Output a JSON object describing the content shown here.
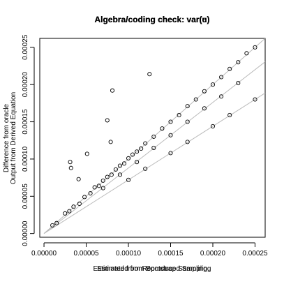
{
  "chart_data": {
    "type": "scatter",
    "titles": [
      "Algebra/coding check: var(u)",
      "Algebra/coding check: var(e)"
    ],
    "xlabels": [
      "Estimated from Bootstrap Sampling",
      "Estimated from Reproduced Sampling"
    ],
    "ylabels": [
      "Difference from oracle",
      "Output from Derived Equation"
    ],
    "xlim": [
      -5e-06,
      0.000262
    ],
    "ylim": [
      -5e-06,
      0.000262
    ],
    "xticks": [
      {
        "value": 0,
        "label": "0.00000"
      },
      {
        "value": 5e-05,
        "label": "0.00005"
      },
      {
        "value": 0.0001,
        "label": "0.00010"
      },
      {
        "value": 0.00015,
        "label": "0.00015"
      },
      {
        "value": 0.0002,
        "label": "0.00020"
      },
      {
        "value": 0.00025,
        "label": "0.00025"
      }
    ],
    "yticks": [
      {
        "value": 0,
        "label": "0.00000"
      },
      {
        "value": 5e-05,
        "label": "0.00005"
      },
      {
        "value": 0.0001,
        "label": "0.00010"
      },
      {
        "value": 0.00015,
        "label": "0.00015"
      },
      {
        "value": 0.0002,
        "label": "0.00020"
      },
      {
        "value": 0.00025,
        "label": "0.00025"
      }
    ],
    "reference_slopes": [
      1,
      0.88,
      0.72
    ],
    "color": "#000000",
    "x": [
      1e-05,
      1.5e-05,
      2.5e-05,
      3e-05,
      3.5e-05,
      4.2e-05,
      4.8e-05,
      5.5e-05,
      6e-05,
      6.5e-05,
      7e-05,
      7.5e-05,
      8e-05,
      8.5e-05,
      9e-05,
      9.5e-05,
      0.0001,
      0.000105,
      0.00011,
      0.000115,
      0.00012,
      0.00013,
      0.00014,
      0.00015,
      0.00016,
      0.00017,
      0.00018,
      0.00019,
      0.0002,
      0.00021,
      0.00022,
      0.00023,
      0.00024,
      0.00025,
      7e-05,
      9e-05,
      0.00011,
      0.00013,
      0.00015,
      0.00017,
      0.00019,
      0.00021,
      0.00023,
      0.0001,
      0.00012,
      0.00015,
      0.00017,
      0.0002,
      0.00022,
      0.00025,
      0.000125,
      8.1e-05,
      7.5e-05,
      7.9e-05,
      5.1e-05,
      3.1e-05,
      3.2e-05,
      4.1e-05
    ],
    "y": [
      1.1e-05,
      1.4e-05,
      2.7e-05,
      3e-05,
      3.6e-05,
      4e-05,
      4.9e-05,
      5.4e-05,
      6.2e-05,
      6.4e-05,
      7.1e-05,
      7.6e-05,
      7.9e-05,
      8.6e-05,
      9.1e-05,
      9.4e-05,
      0.000101,
      0.000106,
      0.00011,
      0.000114,
      0.000121,
      0.00013,
      0.000141,
      0.00015,
      0.000159,
      0.000171,
      0.00018,
      0.000191,
      0.0002,
      0.00021,
      0.000221,
      0.00023,
      0.000242,
      0.00025,
      6.1e-05,
      7.9e-05,
      9.6e-05,
      0.000115,
      0.000132,
      0.00015,
      0.000168,
      0.000184,
      0.000202,
      7.2e-05,
      8.7e-05,
      0.000108,
      0.000123,
      0.000144,
      0.000159,
      0.00018,
      0.000214,
      0.000192,
      0.000152,
      0.000123,
      0.000107,
      9.6e-05,
      8.8e-05,
      7.3e-05
    ]
  }
}
